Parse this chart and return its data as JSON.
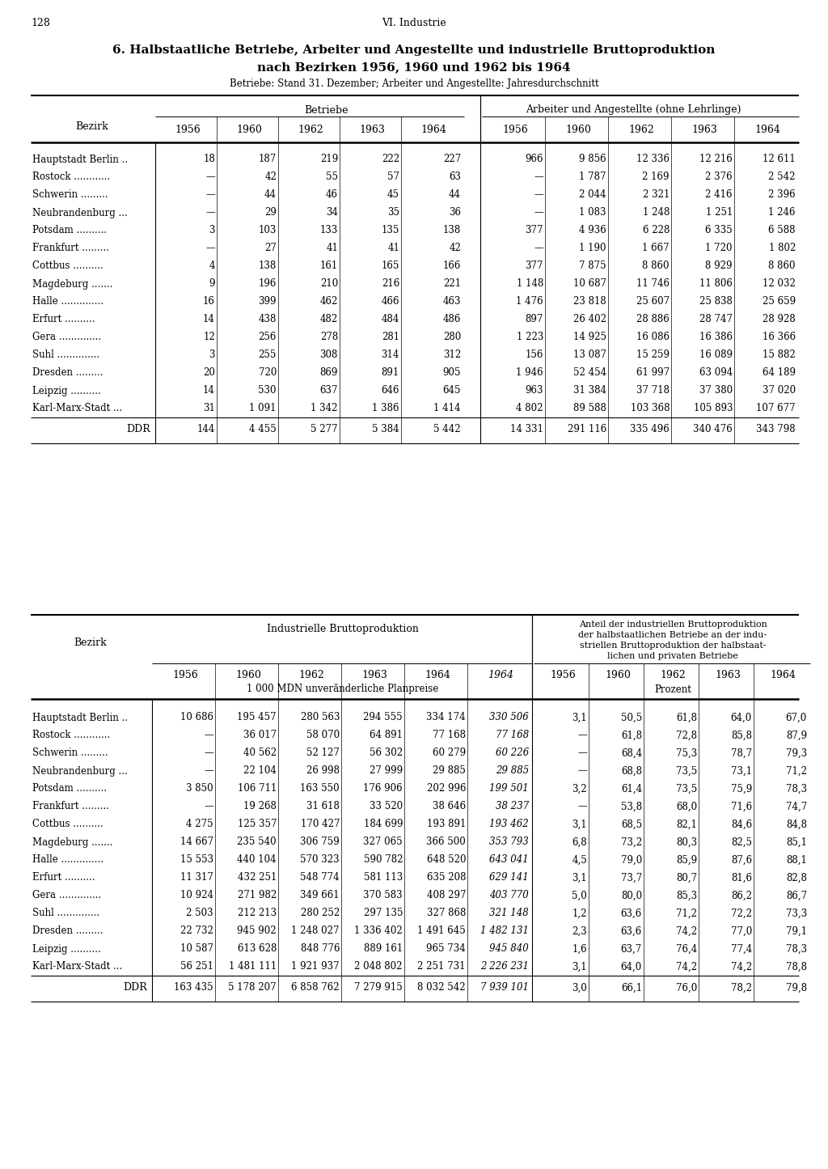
{
  "page_num": "128",
  "page_header": "VI. Industrie",
  "title_line1": "6. Halbstaatliche Betriebe, Arbeiter und Angestellte und industrielle Bruttoproduktion",
  "title_line2": "nach Bezirken 1956, 1960 und 1962 bis 1964",
  "subtitle": "Betriebe: Stand 31. Dezember; Arbeiter und Angestellte: Jahresdurchschnitt",
  "table1_header1": "Betriebe",
  "table1_header2": "Arbeiter und Angestellte (ohne Lehrlinge)",
  "years": [
    "1956",
    "1960",
    "1962",
    "1963",
    "1964"
  ],
  "bezirke": [
    "Hauptstadt Berlin ..",
    "Rostock          ",
    "Schwerin         ",
    "Neubrandenburg  ...",
    "Potsdam          ",
    "Frankfurt         ",
    "Cottbus          ",
    "Magdeburg        ",
    "Halle           ",
    "Erfurt          ",
    "Gera           ",
    "Suhl           ",
    "Dresden         ",
    "Leipzig          ",
    "Karl-Marx-Stadt ..."
  ],
  "betriebe": [
    [
      "18",
      "187",
      "219",
      "222",
      "227"
    ],
    [
      "—",
      "42",
      "55",
      "57",
      "63"
    ],
    [
      "—",
      "44",
      "46",
      "45",
      "44"
    ],
    [
      "—",
      "29",
      "34",
      "35",
      "36"
    ],
    [
      "3",
      "103",
      "133",
      "135",
      "138"
    ],
    [
      "—",
      "27",
      "41",
      "41",
      "42"
    ],
    [
      "4",
      "138",
      "161",
      "165",
      "166"
    ],
    [
      "9",
      "196",
      "210",
      "216",
      "221"
    ],
    [
      "16",
      "399",
      "462",
      "466",
      "463"
    ],
    [
      "14",
      "438",
      "482",
      "484",
      "486"
    ],
    [
      "12",
      "256",
      "278",
      "281",
      "280"
    ],
    [
      "3",
      "255",
      "308",
      "314",
      "312"
    ],
    [
      "20",
      "720",
      "869",
      "891",
      "905"
    ],
    [
      "14",
      "530",
      "637",
      "646",
      "645"
    ],
    [
      "31",
      "1 091",
      "1 342",
      "1 386",
      "1 414"
    ]
  ],
  "ddr_betriebe": [
    "144",
    "4 455",
    "5 277",
    "5 384",
    "5 442"
  ],
  "arbeiter": [
    [
      "966",
      "9 856",
      "12 336",
      "12 216",
      "12 611"
    ],
    [
      "—",
      "1 787",
      "2 169",
      "2 376",
      "2 542"
    ],
    [
      "—",
      "2 044",
      "2 321",
      "2 416",
      "2 396"
    ],
    [
      "—",
      "1 083",
      "1 248",
      "1 251",
      "1 246"
    ],
    [
      "377",
      "4 936",
      "6 228",
      "6 335",
      "6 588"
    ],
    [
      "—",
      "1 190",
      "1 667",
      "1 720",
      "1 802"
    ],
    [
      "377",
      "7 875",
      "8 860",
      "8 929",
      "8 860"
    ],
    [
      "1 148",
      "10 687",
      "11 746",
      "11 806",
      "12 032"
    ],
    [
      "1 476",
      "23 818",
      "25 607",
      "25 838",
      "25 659"
    ],
    [
      "897",
      "26 402",
      "28 886",
      "28 747",
      "28 928"
    ],
    [
      "1 223",
      "14 925",
      "16 086",
      "16 386",
      "16 366"
    ],
    [
      "156",
      "13 087",
      "15 259",
      "16 089",
      "15 882"
    ],
    [
      "1 946",
      "52 454",
      "61 997",
      "63 094",
      "64 189"
    ],
    [
      "963",
      "31 384",
      "37 718",
      "37 380",
      "37 020"
    ],
    [
      "4 802",
      "89 588",
      "103 368",
      "105 893",
      "107 677"
    ]
  ],
  "ddr_arbeiter": [
    "14 331",
    "291 116",
    "335 496",
    "340 476",
    "343 798"
  ],
  "table2_header1": "Industrielle Bruttoproduktion",
  "table2_header2": "Anteil der industriellen Bruttoproduktion der halbstaatlichen Betriebe an der industriellen Bruttoproduktion der halbstaatlichen und privaten Betriebe",
  "table2_subheader1": "1 000 MDN unveränderliche Planpreise",
  "table2_subheader2": "Prozent",
  "years2_col5_italic": true,
  "brutto": [
    [
      "10 686",
      "195 457",
      "280 563",
      "294 555",
      "334 174",
      "330 506"
    ],
    [
      "—",
      "36 017",
      "58 070",
      "64 891",
      "77 168",
      "77 168"
    ],
    [
      "—",
      "40 562",
      "52 127",
      "56 302",
      "60 279",
      "60 226"
    ],
    [
      "—",
      "22 104",
      "26 998",
      "27 999",
      "29 885",
      "29 885"
    ],
    [
      "3 850",
      "106 711",
      "163 550",
      "176 906",
      "202 996",
      "199 501"
    ],
    [
      "—",
      "19 268",
      "31 618",
      "33 520",
      "38 646",
      "38 237"
    ],
    [
      "4 275",
      "125 357",
      "170 427",
      "184 699",
      "193 891",
      "193 462"
    ],
    [
      "14 667",
      "235 540",
      "306 759",
      "327 065",
      "366 500",
      "353 793"
    ],
    [
      "15 553",
      "440 104",
      "570 323",
      "590 782",
      "648 520",
      "643 041"
    ],
    [
      "11 317",
      "432 251",
      "548 774",
      "581 113",
      "635 208",
      "629 141"
    ],
    [
      "10 924",
      "271 982",
      "349 661",
      "370 583",
      "408 297",
      "403 770"
    ],
    [
      "2 503",
      "212 213",
      "280 252",
      "297 135",
      "327 868",
      "321 148"
    ],
    [
      "22 732",
      "945 902",
      "1 248 027",
      "1 336 402",
      "1 491 645",
      "1 482 131"
    ],
    [
      "10 587",
      "613 628",
      "848 776",
      "889 161",
      "965 734",
      "945 840"
    ],
    [
      "56 251",
      "1 481 111",
      "1 921 937",
      "2 048 802",
      "2 251 731",
      "2 226 231"
    ]
  ],
  "ddr_brutto": [
    "163 435",
    "5 178 207",
    "6 858 762",
    "7 279 915",
    "8 032 542",
    "7 939 101"
  ],
  "anteil": [
    [
      "3,1",
      "50,5",
      "61,8",
      "64,0",
      "67,0"
    ],
    [
      "—",
      "61,8",
      "72,8",
      "85,8",
      "87,9"
    ],
    [
      "—",
      "68,4",
      "75,3",
      "78,7",
      "79,3"
    ],
    [
      "—",
      "68,8",
      "73,5",
      "73,1",
      "71,2"
    ],
    [
      "3,2",
      "61,4",
      "73,5",
      "75,9",
      "78,3"
    ],
    [
      "—",
      "53,8",
      "68,0",
      "71,6",
      "74,7"
    ],
    [
      "3,1",
      "68,5",
      "82,1",
      "84,6",
      "84,8"
    ],
    [
      "6,8",
      "73,2",
      "80,3",
      "82,5",
      "85,1"
    ],
    [
      "4,5",
      "79,0",
      "85,9",
      "87,6",
      "88,1"
    ],
    [
      "3,1",
      "73,7",
      "80,7",
      "81,6",
      "82,8"
    ],
    [
      "5,0",
      "80,0",
      "85,3",
      "86,2",
      "86,7"
    ],
    [
      "1,2",
      "63,6",
      "71,2",
      "72,2",
      "73,3"
    ],
    [
      "2,3",
      "63,6",
      "74,2",
      "77,0",
      "79,1"
    ],
    [
      "1,6",
      "63,7",
      "76,4",
      "77,4",
      "78,3"
    ],
    [
      "3,1",
      "64,0",
      "74,2",
      "74,2",
      "78,8"
    ]
  ],
  "ddr_anteil": [
    "3,0",
    "66,1",
    "76,0",
    "78,2",
    "79,8"
  ]
}
